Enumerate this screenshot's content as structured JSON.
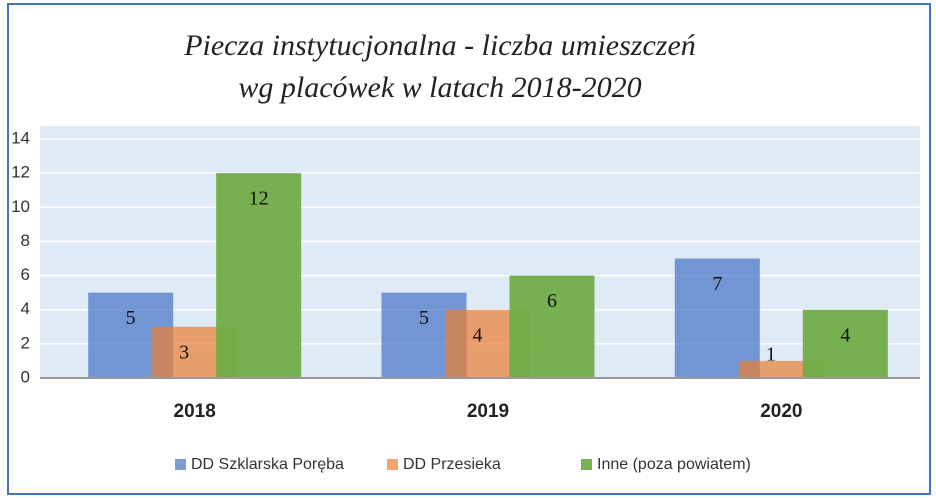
{
  "chart_data": {
    "type": "bar",
    "title": [
      "Piecza instytucjonalna - liczba umieszczeń",
      "wg placówek w latach 2018-2020"
    ],
    "categories": [
      "2018",
      "2019",
      "2020"
    ],
    "series": [
      {
        "name": "DD Szklarska Poręba",
        "color": "#4472c4",
        "values": [
          5,
          5,
          7
        ]
      },
      {
        "name": "DD Przesieka",
        "color": "#ed7d31",
        "values": [
          3,
          4,
          1
        ]
      },
      {
        "name": "Inne (poza powiatem)",
        "color": "#70ad47",
        "values": [
          12,
          6,
          4
        ]
      }
    ],
    "ylim": [
      0,
      14
    ],
    "yticks": [
      0,
      2,
      4,
      6,
      8,
      10,
      12,
      14
    ],
    "grid": true,
    "legend": "bottom"
  }
}
